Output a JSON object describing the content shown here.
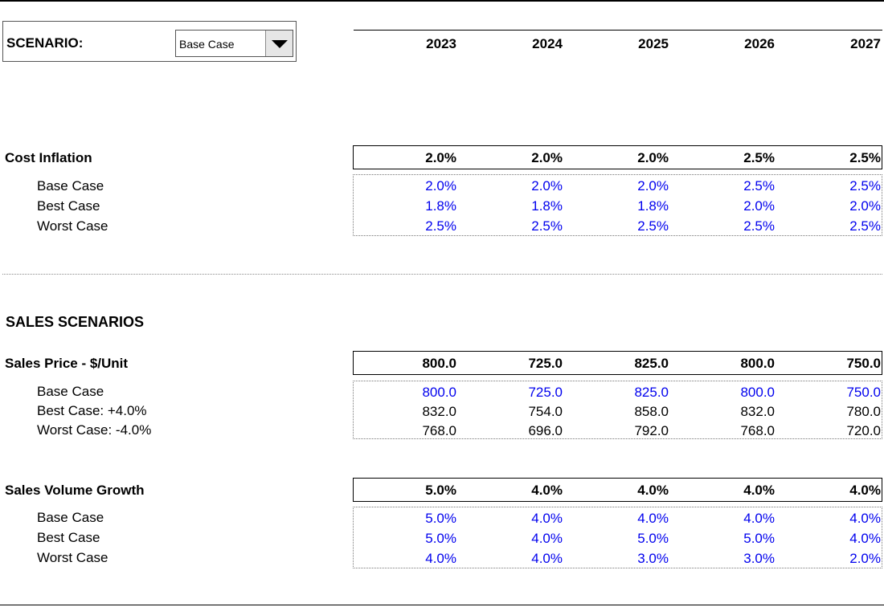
{
  "scenario": {
    "label": "SCENARIO:",
    "selected": "Base Case"
  },
  "years": [
    "2023",
    "2024",
    "2025",
    "2026",
    "2027"
  ],
  "cost_inflation": {
    "title": "Cost Inflation",
    "summary": [
      "2.0%",
      "2.0%",
      "2.0%",
      "2.5%",
      "2.5%"
    ],
    "rows": [
      {
        "label": "Base Case",
        "values": [
          "2.0%",
          "2.0%",
          "2.0%",
          "2.5%",
          "2.5%"
        ],
        "color": "#0000ee"
      },
      {
        "label": "Best Case",
        "values": [
          "1.8%",
          "1.8%",
          "1.8%",
          "2.0%",
          "2.0%"
        ],
        "color": "#0000ee"
      },
      {
        "label": "Worst Case",
        "values": [
          "2.5%",
          "2.5%",
          "2.5%",
          "2.5%",
          "2.5%"
        ],
        "color": "#0000ee"
      }
    ]
  },
  "sales_scenarios_title": "SALES SCENARIOS",
  "sales_price": {
    "title": "Sales Price - $/Unit",
    "summary": [
      "800.0",
      "725.0",
      "825.0",
      "800.0",
      "750.0"
    ],
    "rows": [
      {
        "label": "Base Case",
        "values": [
          "800.0",
          "725.0",
          "825.0",
          "800.0",
          "750.0"
        ],
        "color": "#0000ee"
      },
      {
        "label": "Best Case: +4.0%",
        "values": [
          "832.0",
          "754.0",
          "858.0",
          "832.0",
          "780.0"
        ],
        "color": "#000000"
      },
      {
        "label": "Worst Case: -4.0%",
        "values": [
          "768.0",
          "696.0",
          "792.0",
          "768.0",
          "720.0"
        ],
        "color": "#000000"
      }
    ]
  },
  "sales_volume": {
    "title": "Sales Volume Growth",
    "summary": [
      "5.0%",
      "4.0%",
      "4.0%",
      "4.0%",
      "4.0%"
    ],
    "rows": [
      {
        "label": "Base Case",
        "values": [
          "5.0%",
          "4.0%",
          "4.0%",
          "4.0%",
          "4.0%"
        ],
        "color": "#0000ee"
      },
      {
        "label": "Best Case",
        "values": [
          "5.0%",
          "4.0%",
          "5.0%",
          "5.0%",
          "4.0%"
        ],
        "color": "#0000ee"
      },
      {
        "label": "Worst Case",
        "values": [
          "4.0%",
          "4.0%",
          "3.0%",
          "3.0%",
          "2.0%"
        ],
        "color": "#0000ee"
      }
    ]
  }
}
